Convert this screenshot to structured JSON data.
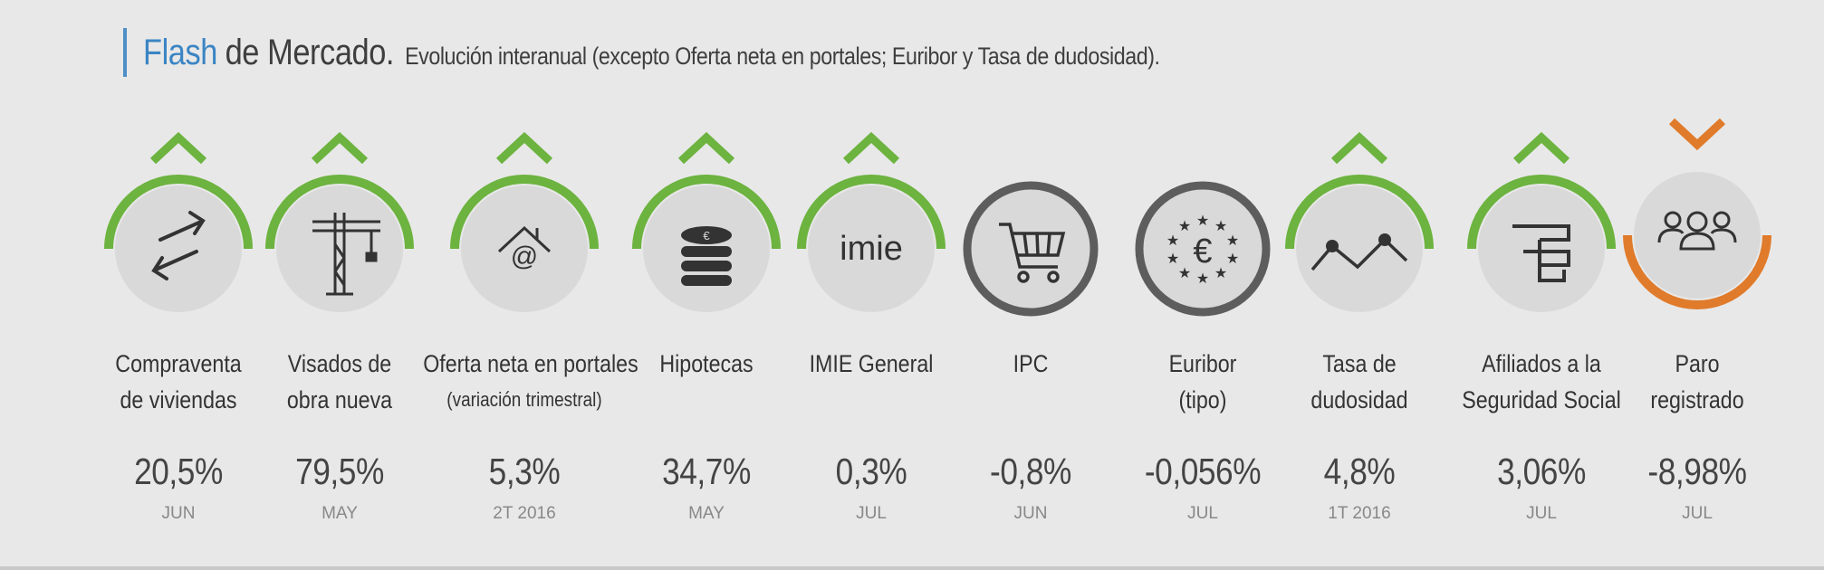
{
  "header": {
    "flash": "Flash",
    "mercado": "de Mercado.",
    "subtitle": "Evolución interanual (excepto Oferta neta en portales; Euribor y Tasa de dudosidad)."
  },
  "colors": {
    "up": "#6cb33f",
    "down": "#e07b2b",
    "neutral": "#5d5d5d",
    "circle": "#d9d9d9",
    "accent": "#3b85c4"
  },
  "indicators": [
    {
      "label1": "Compraventa",
      "label2": "de viviendas",
      "value": "20,5%",
      "period": "JUN",
      "trend": "up",
      "icon": "exchange-arrows-icon"
    },
    {
      "label1": "Visados de",
      "label2": "obra nueva",
      "value": "79,5%",
      "period": "MAY",
      "trend": "up",
      "icon": "crane-icon"
    },
    {
      "label1": "Oferta neta en portales",
      "label2": "(variación trimestral)",
      "value": "5,3%",
      "period": "2T 2016",
      "trend": "up",
      "icon": "house-at-icon"
    },
    {
      "label1": "Hipotecas",
      "label2": "",
      "value": "34,7%",
      "period": "MAY",
      "trend": "up",
      "icon": "coins-stack-icon"
    },
    {
      "label1": "IMIE General",
      "label2": "",
      "value": "0,3%",
      "period": "JUL",
      "trend": "up",
      "icon": "imie-logo-icon",
      "icon_text": "imie"
    },
    {
      "label1": "IPC",
      "label2": "",
      "value": "-0,8%",
      "period": "JUN",
      "trend": "neutral",
      "icon": "shopping-cart-icon"
    },
    {
      "label1": "Euribor",
      "label2": "(tipo)",
      "value": "-0,056%",
      "period": "JUL",
      "trend": "neutral",
      "icon": "euro-stars-icon"
    },
    {
      "label1": "Tasa de",
      "label2": "dudosidad",
      "value": "4,8%",
      "period": "1T 2016",
      "trend": "up",
      "icon": "line-zigzag-icon"
    },
    {
      "label1": "Afiliados a la",
      "label2": "Seguridad Social",
      "value": "3,06%",
      "period": "JUL",
      "trend": "up",
      "icon": "social-security-icon"
    },
    {
      "label1": "Paro",
      "label2": "registrado",
      "value": "-8,98%",
      "period": "JUL",
      "trend": "down",
      "icon": "people-group-icon"
    }
  ]
}
